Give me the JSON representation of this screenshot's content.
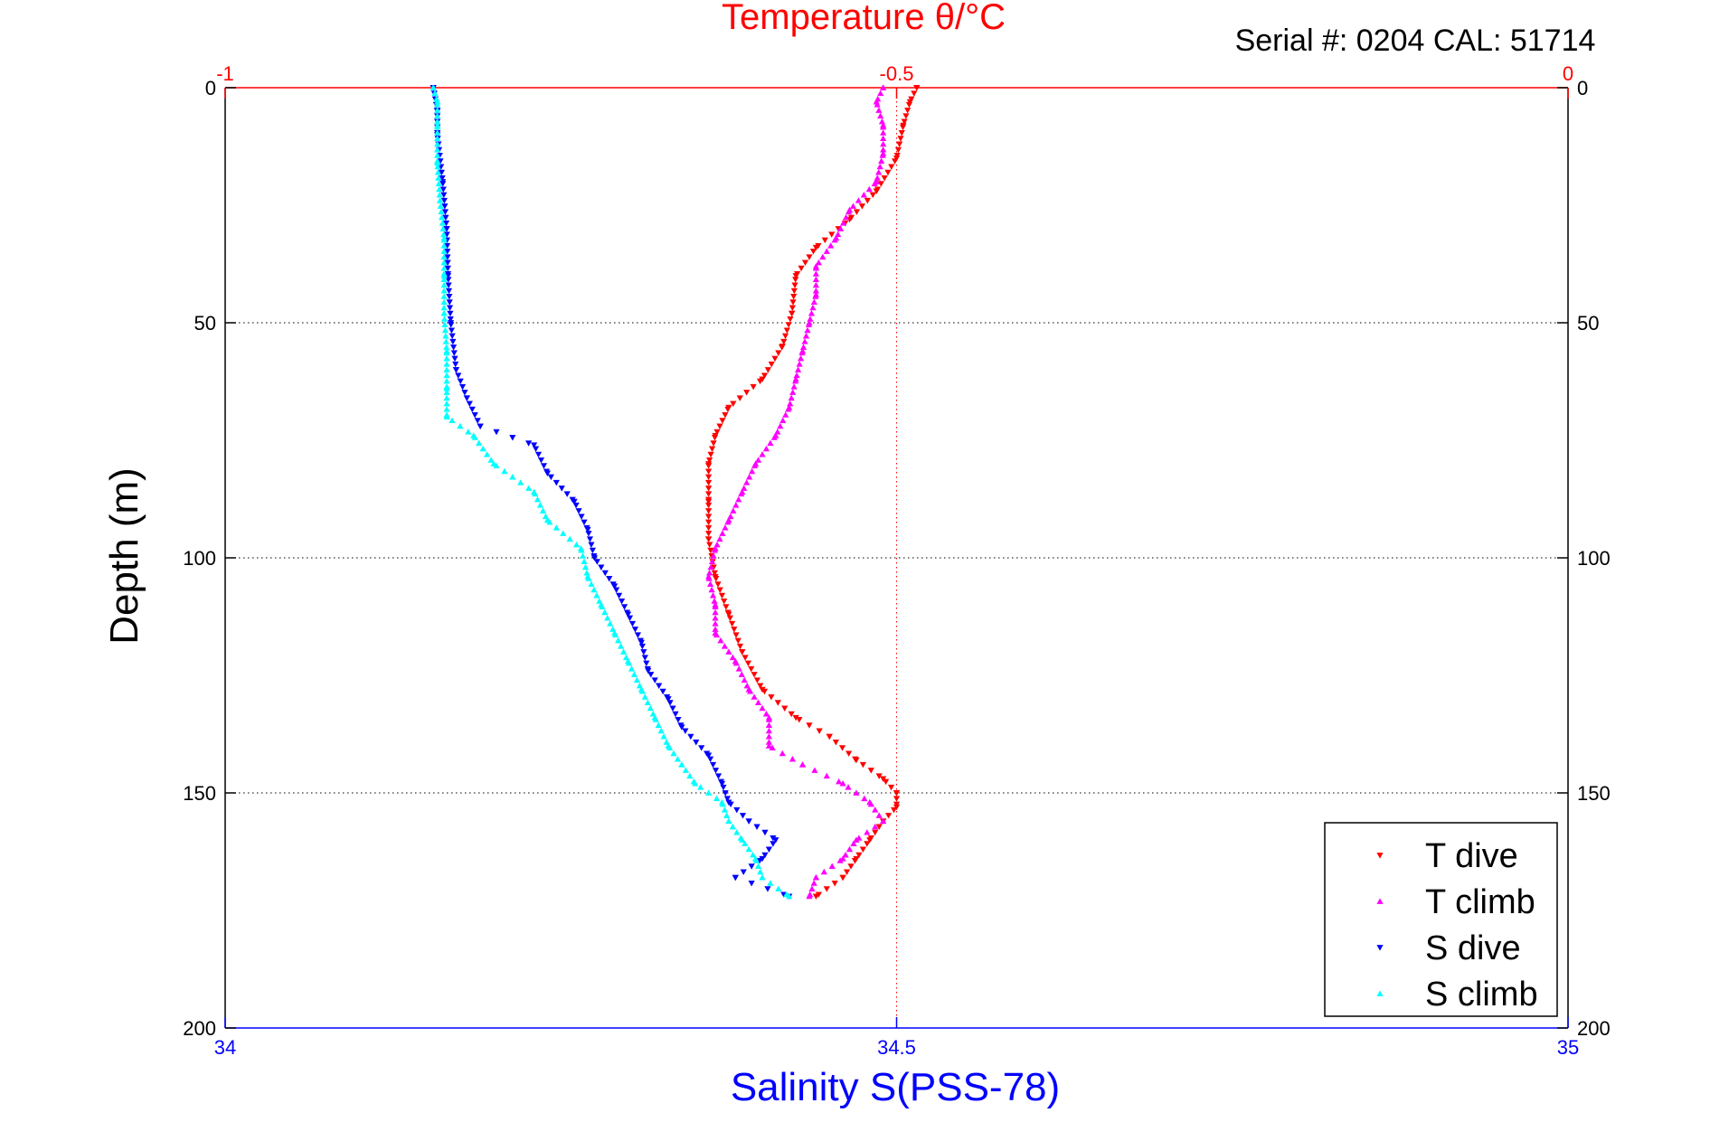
{
  "chart_data": {
    "type": "scatter",
    "title": "Temperature θ/°C",
    "header_text": "Serial #: 0204  CAL: 51714",
    "ylabel": "Depth (m)",
    "xlabel_bottom": "Salinity S(PSS-78)",
    "y_range": [
      0,
      200
    ],
    "y_reversed": true,
    "y_ticks": [
      0,
      50,
      100,
      150,
      200
    ],
    "y_tick_labels": [
      "0",
      "50",
      "100",
      "150",
      "200"
    ],
    "x_bottom_range": [
      34,
      35
    ],
    "x_bottom_ticks": [
      34,
      34.5,
      35
    ],
    "x_bottom_tick_labels": [
      "34",
      "34.5",
      "35"
    ],
    "x_top_range": [
      -1,
      0
    ],
    "x_top_ticks": [
      -1,
      -0.5,
      0
    ],
    "x_top_tick_labels": [
      "-1",
      "-0.5",
      "0"
    ],
    "grid": "dotted horizontal at y ticks; dotted vertical at -0.5 (top axis)",
    "legend_position": "bottom-right",
    "colors": {
      "t_dive": "#ff0000",
      "t_climb": "#ff00ff",
      "s_dive": "#0000ff",
      "s_climb": "#00ffff",
      "top_axis": "#ff0000",
      "bottom_axis": "#0000ff",
      "frame": "#000000"
    },
    "series": [
      {
        "name": "T dive",
        "axis": "top",
        "marker": "triangle-down",
        "depth": [
          0,
          3,
          8,
          15,
          22,
          28,
          34,
          40,
          48,
          55,
          62,
          68,
          74,
          80,
          88,
          96,
          104,
          112,
          120,
          128,
          134,
          138,
          143,
          147,
          150,
          153,
          156,
          160,
          164,
          168,
          172
        ],
        "values": [
          -0.485,
          -0.49,
          -0.495,
          -0.5,
          -0.515,
          -0.535,
          -0.56,
          -0.575,
          -0.578,
          -0.585,
          -0.6,
          -0.625,
          -0.635,
          -0.64,
          -0.64,
          -0.64,
          -0.635,
          -0.625,
          -0.615,
          -0.6,
          -0.575,
          -0.55,
          -0.53,
          -0.51,
          -0.5,
          -0.5,
          -0.51,
          -0.52,
          -0.53,
          -0.54,
          -0.56
        ]
      },
      {
        "name": "T climb",
        "axis": "top",
        "marker": "triangle-up",
        "depth": [
          172,
          168,
          164,
          160,
          156,
          152,
          148,
          144,
          140,
          134,
          128,
          122,
          116,
          110,
          104,
          98,
          92,
          86,
          80,
          74,
          68,
          62,
          56,
          50,
          44,
          38,
          32,
          26,
          20,
          14,
          8,
          3,
          0
        ],
        "values": [
          -0.565,
          -0.56,
          -0.54,
          -0.53,
          -0.51,
          -0.52,
          -0.54,
          -0.57,
          -0.595,
          -0.595,
          -0.61,
          -0.62,
          -0.635,
          -0.635,
          -0.64,
          -0.635,
          -0.625,
          -0.615,
          -0.605,
          -0.59,
          -0.58,
          -0.575,
          -0.57,
          -0.565,
          -0.56,
          -0.56,
          -0.545,
          -0.535,
          -0.515,
          -0.51,
          -0.51,
          -0.515,
          -0.51
        ]
      },
      {
        "name": "S dive",
        "axis": "bottom",
        "marker": "triangle-down",
        "depth": [
          0,
          5,
          10,
          20,
          30,
          40,
          50,
          60,
          66,
          72,
          76,
          82,
          88,
          94,
          100,
          106,
          112,
          118,
          124,
          130,
          136,
          142,
          148,
          152,
          156,
          160,
          164,
          168,
          172
        ],
        "values": [
          34.155,
          34.158,
          34.158,
          34.162,
          34.165,
          34.166,
          34.168,
          34.172,
          34.18,
          34.19,
          34.23,
          34.24,
          34.26,
          34.27,
          34.275,
          34.29,
          34.3,
          34.31,
          34.315,
          34.33,
          34.34,
          34.36,
          34.37,
          34.375,
          34.39,
          34.41,
          34.4,
          34.38,
          34.42
        ]
      },
      {
        "name": "S climb",
        "axis": "bottom",
        "marker": "triangle-up",
        "depth": [
          172,
          168,
          164,
          160,
          156,
          152,
          148,
          144,
          140,
          134,
          128,
          122,
          116,
          110,
          104,
          98,
          92,
          86,
          80,
          74,
          70,
          64,
          56,
          48,
          40,
          32,
          24,
          16,
          8,
          3,
          0
        ],
        "values": [
          34.42,
          34.4,
          34.395,
          34.385,
          34.375,
          34.37,
          34.35,
          34.34,
          34.33,
          34.32,
          34.31,
          34.3,
          34.29,
          34.28,
          34.27,
          34.265,
          34.24,
          34.23,
          34.2,
          34.185,
          34.165,
          34.165,
          34.165,
          34.163,
          34.163,
          34.163,
          34.16,
          34.158,
          34.158,
          34.158,
          34.155
        ]
      }
    ]
  }
}
